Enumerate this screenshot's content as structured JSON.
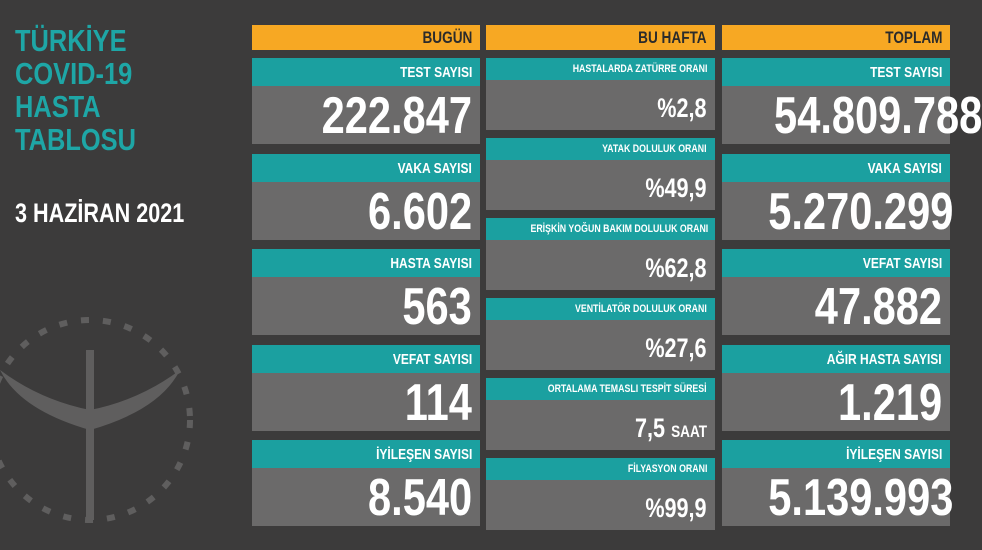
{
  "title_lines": [
    "TÜRKİYE",
    "COVID-19",
    "HASTA",
    "TABLOSU"
  ],
  "date": "3 HAZİRAN 2021",
  "colors": {
    "background": "#3c3b3b",
    "teal": "#1ba0a0",
    "orange": "#f7a823",
    "card_gray": "#6b6a6a"
  },
  "today": {
    "header": "BUGÜN",
    "items": [
      {
        "label": "TEST SAYISI",
        "value": "222.847"
      },
      {
        "label": "VAKA SAYISI",
        "value": "6.602"
      },
      {
        "label": "HASTA SAYISI",
        "value": "563"
      },
      {
        "label": "VEFAT SAYISI",
        "value": "114"
      },
      {
        "label": "İYİLEŞEN SAYISI",
        "value": "8.540"
      }
    ]
  },
  "week": {
    "header": "BU HAFTA",
    "items": [
      {
        "label": "HASTALARDA ZATÜRRE ORANI",
        "value": "%2,8",
        "unit": ""
      },
      {
        "label": "YATAK DOLULUK ORANI",
        "value": "%49,9",
        "unit": ""
      },
      {
        "label": "ERİŞKİN YOĞUN BAKIM DOLULUK ORANI",
        "value": "%62,8",
        "unit": ""
      },
      {
        "label": "VENTİLATÖR DOLULUK ORANI",
        "value": "%27,6",
        "unit": ""
      },
      {
        "label": "ORTALAMA TEMASLI TESPİT SÜRESİ",
        "value": "7,5",
        "unit": "SAAT"
      },
      {
        "label": "FİLYASYON ORANI",
        "value": "%99,9",
        "unit": ""
      }
    ]
  },
  "total": {
    "header": "TOPLAM",
    "items": [
      {
        "label": "TEST SAYISI",
        "value": "54.809.788"
      },
      {
        "label": "VAKA SAYISI",
        "value": "5.270.299"
      },
      {
        "label": "VEFAT SAYISI",
        "value": "47.882"
      },
      {
        "label": "AĞIR HASTA SAYISI",
        "value": "1.219"
      },
      {
        "label": "İYİLEŞEN SAYISI",
        "value": "5.139.993"
      }
    ]
  }
}
